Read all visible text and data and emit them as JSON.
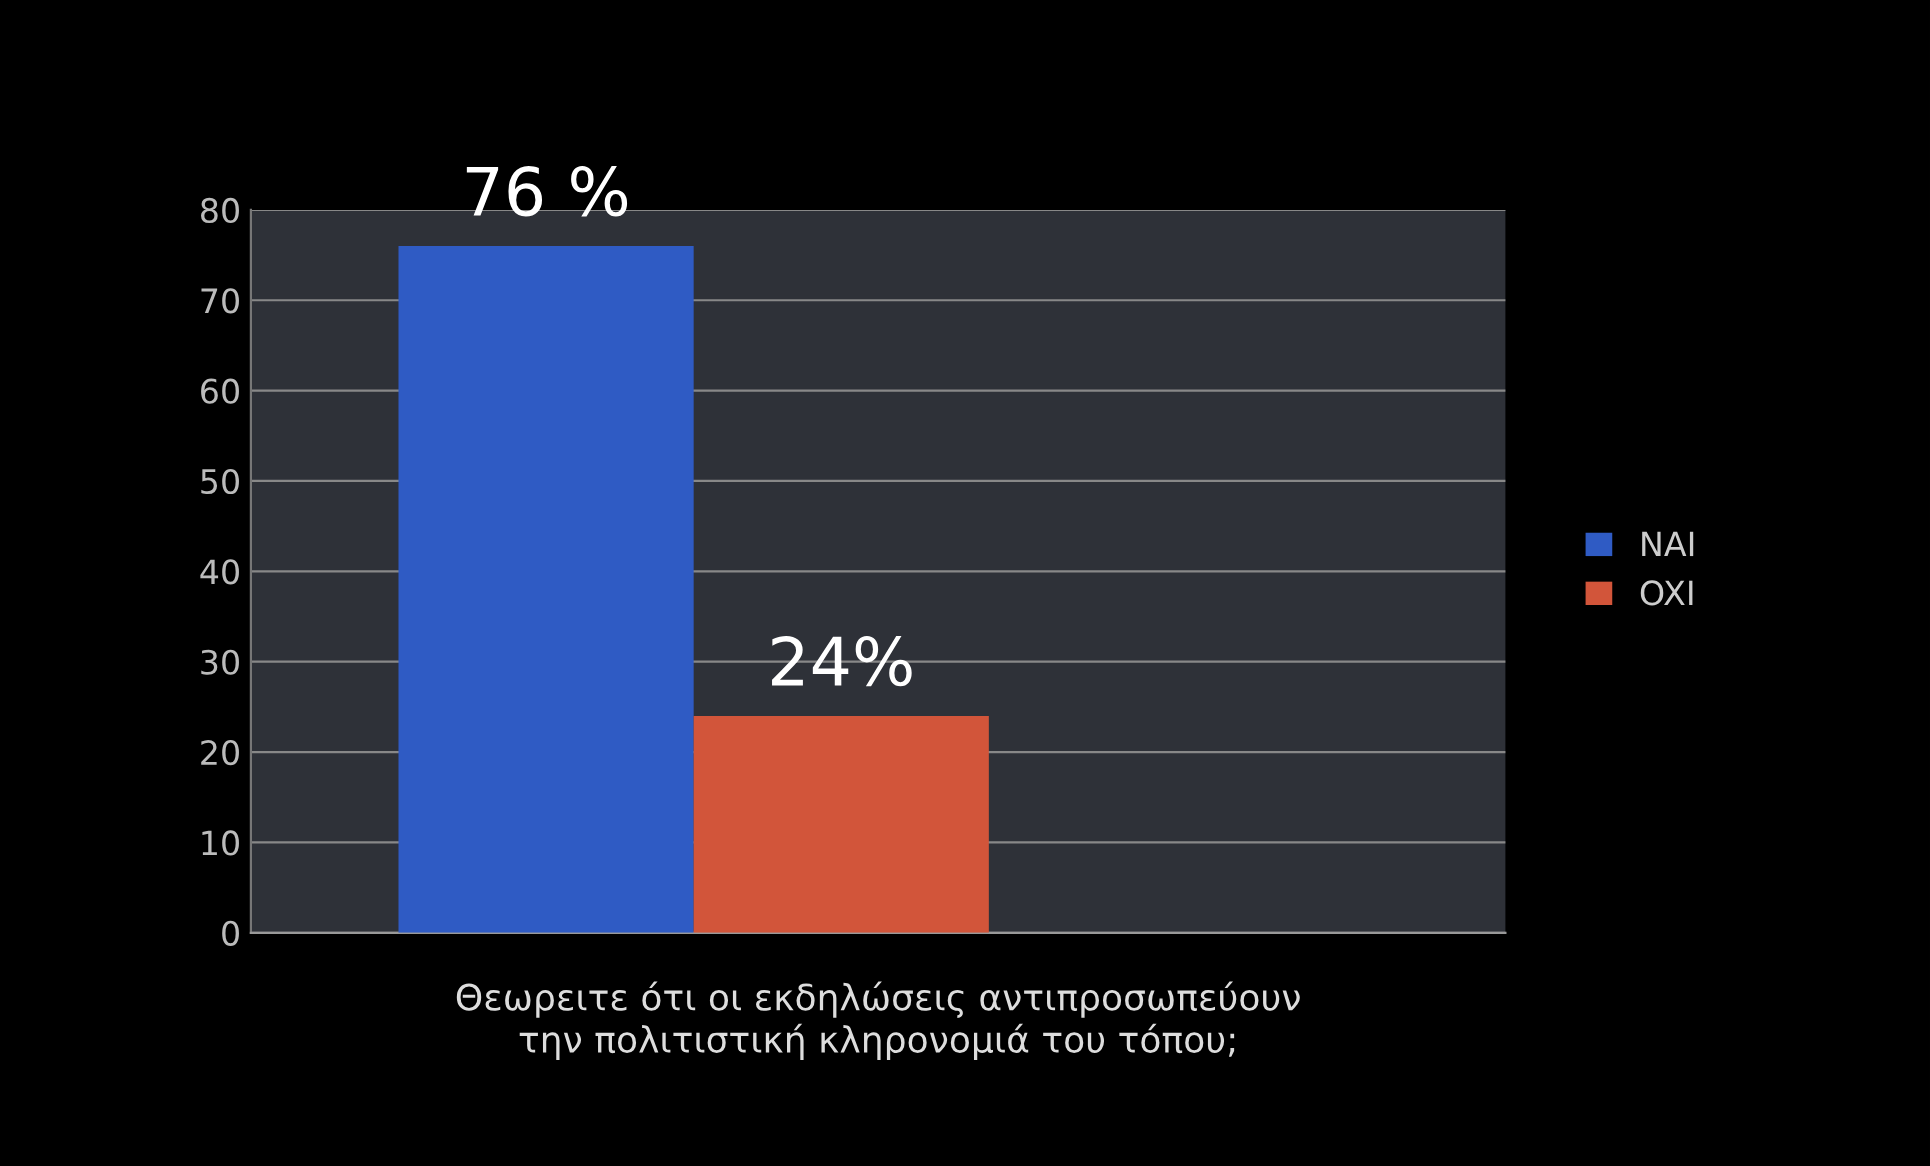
{
  "chart_data": {
    "type": "bar",
    "xlabel": "Θεωρειτε ότι οι εκδηλώσεις αντιπροσωπεύουν\nτην πολιτιστική κληρονομιά του τόπου;",
    "categories": [
      null
    ],
    "series": [
      {
        "name": "NAI",
        "color": "#2f5bc4",
        "values": [
          76
        ],
        "value_labels": [
          "76 %"
        ]
      },
      {
        "name": "OXI",
        "color": "#d2553a",
        "values": [
          24
        ],
        "value_labels": [
          "24%"
        ]
      }
    ],
    "ylim": [
      0,
      80
    ],
    "yticks": [
      0,
      10,
      20,
      30,
      40,
      50,
      60,
      70,
      80
    ],
    "grid": "y",
    "legend": "right"
  }
}
